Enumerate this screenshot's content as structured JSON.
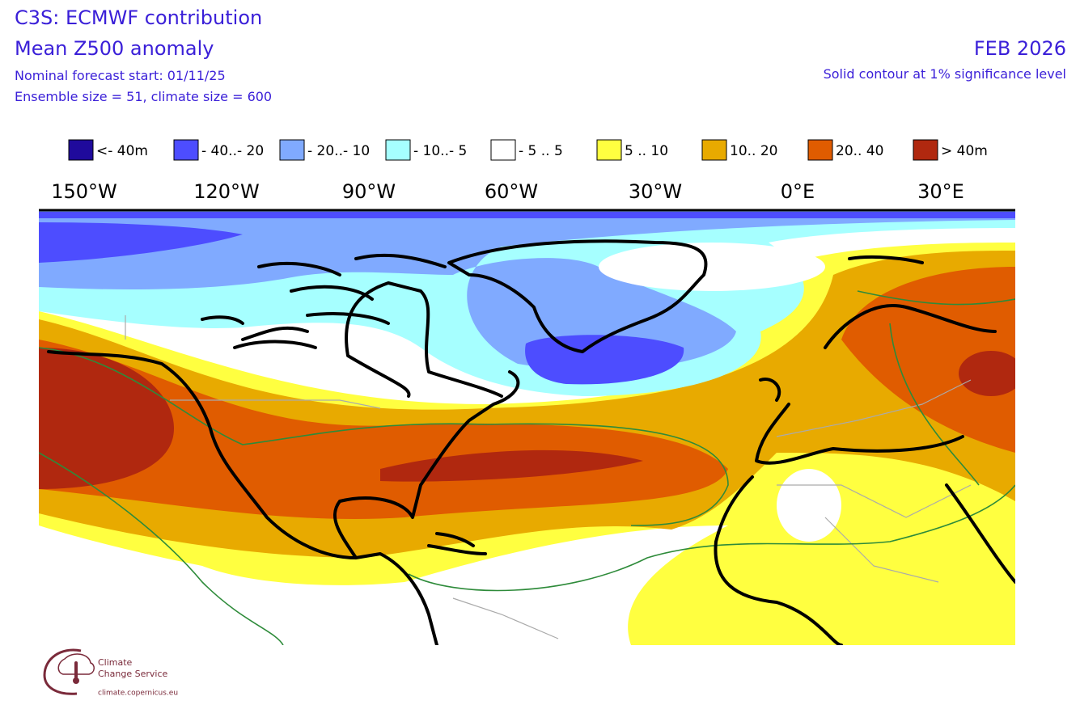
{
  "header": {
    "title": "C3S: ECMWF contribution",
    "subtitle": "Mean Z500 anomaly",
    "forecast_start": "Nominal forecast start: 01/11/25",
    "ensemble": "Ensemble size = 51, climate size = 600",
    "period": "FEB 2026",
    "note": "Solid contour at 1% significance level"
  },
  "legend": [
    {
      "label": "<- 40m",
      "color": "#1f0a9c"
    },
    {
      "label": "- 40..- 20",
      "color": "#4d4dff"
    },
    {
      "label": "- 20..- 10",
      "color": "#80aaff"
    },
    {
      "label": "- 10..- 5",
      "color": "#a6ffff"
    },
    {
      "label": "- 5 .. 5",
      "color": "#ffffff"
    },
    {
      "label": "5 .. 10",
      "color": "#ffff40"
    },
    {
      "label": "10.. 20",
      "color": "#e8aa00"
    },
    {
      "label": "20.. 40",
      "color": "#e05c00"
    },
    {
      "label": "> 40m",
      "color": "#b0280f"
    }
  ],
  "longitudes": [
    "150°W",
    "120°W",
    "90°W",
    "60°W",
    "30°W",
    "0°E",
    "30°E"
  ],
  "logo": {
    "line1": "Climate",
    "line2": "Change Service",
    "url": "climate.copernicus.eu"
  }
}
